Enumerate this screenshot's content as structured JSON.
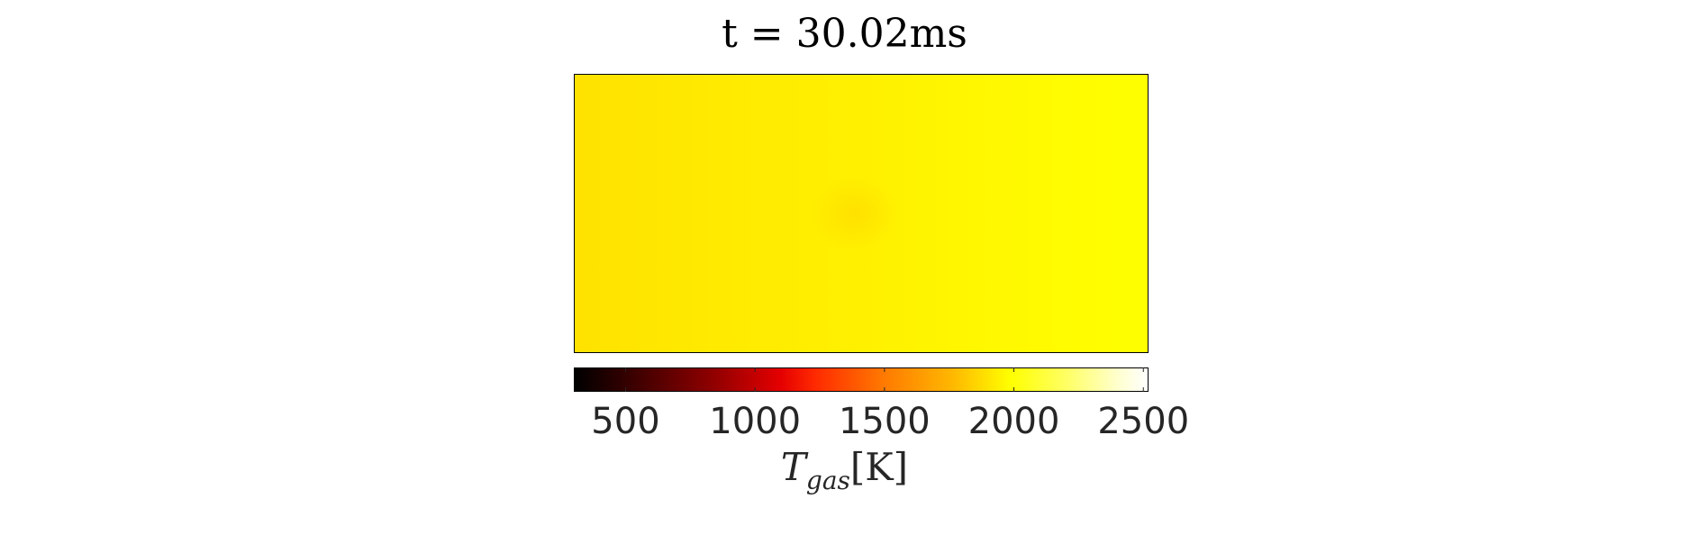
{
  "chart_data": {
    "type": "heatmap",
    "title": "t = 30.02ms",
    "colormap": "hot",
    "field_range": [
      1950,
      2050
    ],
    "field_description_values": {
      "left_edge": 1950,
      "center_hotspot": 1960,
      "right_edge": 2050
    },
    "colorbar": {
      "ticks": [
        500,
        1000,
        1500,
        2000,
        2500
      ],
      "tick_labels": [
        "500",
        "1000",
        "1500",
        "2000",
        "2500"
      ],
      "limits": [
        300,
        2520
      ],
      "label_main": "T",
      "label_sub": "gas",
      "label_unit": "[K]",
      "orientation": "horizontal",
      "placement": "below"
    }
  }
}
